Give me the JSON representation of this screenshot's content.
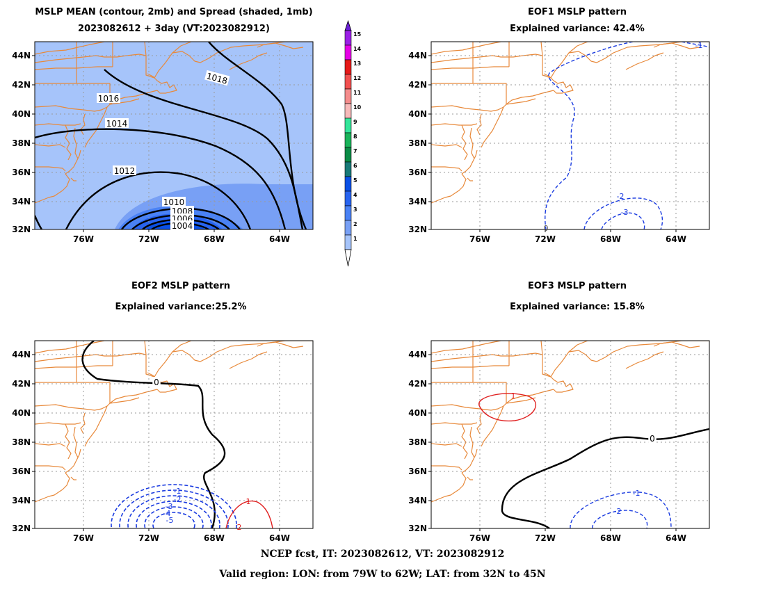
{
  "panels": {
    "mean": {
      "title_line1": "MSLP MEAN (contour, 2mb) and Spread (shaded, 1mb)",
      "title_line2": "2023082612 + 3day (VT:2023082912)",
      "contour_labels": [
        "1018",
        "1016",
        "1014",
        "1012",
        "1010",
        "1008",
        "1006",
        "1004"
      ]
    },
    "eof1": {
      "title_line1": "EOF1 MSLP pattern",
      "title_line2": "Explained variance: 42.4%",
      "contour_labels": [
        "0",
        "-2",
        "-3",
        "-1"
      ]
    },
    "eof2": {
      "title_line1": "EOF2 MSLP pattern",
      "title_line2": "Explained variance:25.2%",
      "contour_labels": [
        "0",
        "-1",
        "-2",
        "-3",
        "-4",
        "-5",
        "1",
        "2"
      ]
    },
    "eof3": {
      "title_line1": "EOF3 MSLP pattern",
      "title_line2": "Explained variance: 15.8%",
      "contour_labels": [
        "1",
        "0",
        "-1",
        "-2"
      ]
    }
  },
  "axes": {
    "lat_labels": [
      "44N",
      "42N",
      "40N",
      "38N",
      "36N",
      "34N",
      "32N"
    ],
    "lon_labels": [
      "76W",
      "72W",
      "68W",
      "64W"
    ]
  },
  "colorbar": {
    "labels": [
      "15",
      "14",
      "13",
      "12",
      "11",
      "10",
      "9",
      "8",
      "7",
      "6",
      "5",
      "4",
      "3",
      "2",
      "1"
    ],
    "colors": [
      "#9b1fe6",
      "#e600e6",
      "#e61919",
      "#f25050",
      "#f58c8c",
      "#f7baba",
      "#33e69a",
      "#19b45a",
      "#0a8c46",
      "#187a78",
      "#0a50e6",
      "#2864f0",
      "#4a82f5",
      "#78a0f5",
      "#a6c4fa"
    ],
    "over_color": "#6a1fd6",
    "under_color": "#ffffff"
  },
  "footer": {
    "line1": "NCEP fcst, IT: 2023082612, VT: 2023082912",
    "line2": "Valid region: LON: from 79W to 62W; LAT: from 32N to 45N"
  },
  "colors": {
    "coast": "#e8893a",
    "grid": "#9a9a9a",
    "neg_contour": "#1a3be0",
    "pos_contour": "#e02020",
    "mean_contour": "#000000",
    "spread_base": "#a6c4fa"
  }
}
